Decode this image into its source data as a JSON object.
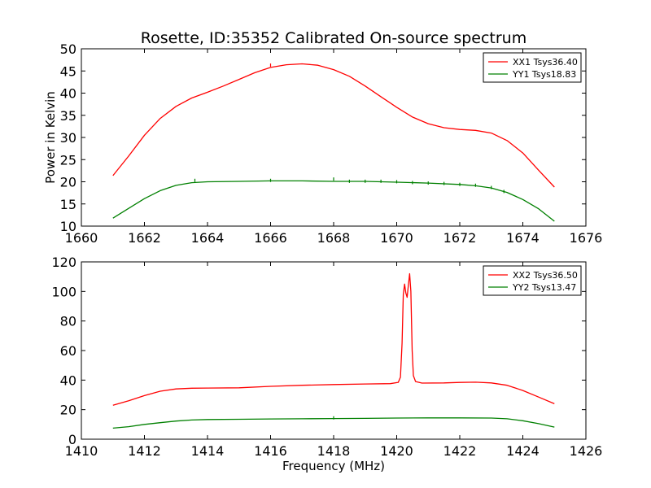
{
  "figure": {
    "title": "Rosette, ID:35352 Calibrated On-source spectrum"
  },
  "chart_data": [
    {
      "type": "line",
      "title": "Rosette, ID:35352 Calibrated On-source spectrum",
      "xlabel": "",
      "ylabel": "Power in Kelvin",
      "xlim": [
        1660,
        1676
      ],
      "ylim": [
        10,
        50
      ],
      "xticks": [
        "1660",
        "1662",
        "1664",
        "1666",
        "1668",
        "1670",
        "1672",
        "1674",
        "1676"
      ],
      "yticks": [
        "10",
        "15",
        "20",
        "25",
        "30",
        "35",
        "40",
        "45",
        "50"
      ],
      "legend_position": "top-right",
      "series": [
        {
          "name": "XX1 Tsys36.40",
          "color": "#ff0000",
          "points": [
            [
              1661.0,
              21.4
            ],
            [
              1661.5,
              25.8
            ],
            [
              1662.0,
              30.5
            ],
            [
              1662.5,
              34.3
            ],
            [
              1663.0,
              37.0
            ],
            [
              1663.5,
              38.9
            ],
            [
              1664.0,
              40.2
            ],
            [
              1664.5,
              41.6
            ],
            [
              1665.0,
              43.1
            ],
            [
              1665.5,
              44.6
            ],
            [
              1666.0,
              45.8
            ],
            [
              1666.5,
              46.4
            ],
            [
              1667.0,
              46.6
            ],
            [
              1667.5,
              46.3
            ],
            [
              1668.0,
              45.3
            ],
            [
              1668.5,
              43.8
            ],
            [
              1669.0,
              41.6
            ],
            [
              1669.5,
              39.2
            ],
            [
              1670.0,
              36.8
            ],
            [
              1670.5,
              34.6
            ],
            [
              1671.0,
              33.1
            ],
            [
              1671.5,
              32.2
            ],
            [
              1672.0,
              31.8
            ],
            [
              1672.5,
              31.6
            ],
            [
              1673.0,
              31.0
            ],
            [
              1673.5,
              29.3
            ],
            [
              1674.0,
              26.5
            ],
            [
              1674.5,
              22.6
            ],
            [
              1675.0,
              18.8
            ]
          ],
          "spikes": [
            [
              1666.0,
              46.5
            ]
          ]
        },
        {
          "name": "YY1 Tsys18.83",
          "color": "#008000",
          "points": [
            [
              1661.0,
              11.8
            ],
            [
              1661.5,
              14.0
            ],
            [
              1662.0,
              16.2
            ],
            [
              1662.5,
              18.0
            ],
            [
              1663.0,
              19.2
            ],
            [
              1663.5,
              19.8
            ],
            [
              1664.0,
              20.0
            ],
            [
              1665.0,
              20.1
            ],
            [
              1666.0,
              20.2
            ],
            [
              1667.0,
              20.2
            ],
            [
              1668.0,
              20.1
            ],
            [
              1669.0,
              20.1
            ],
            [
              1670.0,
              19.9
            ],
            [
              1671.0,
              19.7
            ],
            [
              1672.0,
              19.4
            ],
            [
              1672.5,
              19.1
            ],
            [
              1673.0,
              18.6
            ],
            [
              1673.5,
              17.6
            ],
            [
              1674.0,
              16.0
            ],
            [
              1674.5,
              13.9
            ],
            [
              1675.0,
              11.1
            ]
          ],
          "spikes": [
            [
              1663.6,
              20.5
            ],
            [
              1666.0,
              20.5
            ],
            [
              1668.0,
              20.8
            ],
            [
              1668.5,
              20.3
            ],
            [
              1669.0,
              20.3
            ],
            [
              1669.5,
              20.3
            ],
            [
              1670.0,
              20.2
            ],
            [
              1670.5,
              20.0
            ],
            [
              1671.0,
              19.9
            ],
            [
              1671.5,
              19.8
            ],
            [
              1672.0,
              19.6
            ],
            [
              1672.5,
              19.4
            ],
            [
              1673.0,
              18.9
            ],
            [
              1673.4,
              18.0
            ]
          ]
        }
      ]
    },
    {
      "type": "line",
      "title": "",
      "xlabel": "Frequency (MHz)",
      "ylabel": "",
      "xlim": [
        1410,
        1426
      ],
      "ylim": [
        0,
        120
      ],
      "xticks": [
        "1410",
        "1412",
        "1414",
        "1416",
        "1418",
        "1420",
        "1422",
        "1424",
        "1426"
      ],
      "yticks": [
        "0",
        "20",
        "40",
        "60",
        "80",
        "100",
        "120"
      ],
      "legend_position": "top-right",
      "series": [
        {
          "name": "XX2 Tsys36.50",
          "color": "#ff0000",
          "points": [
            [
              1411.0,
              23.0
            ],
            [
              1411.5,
              26.0
            ],
            [
              1412.0,
              29.5
            ],
            [
              1412.5,
              32.5
            ],
            [
              1413.0,
              34.0
            ],
            [
              1413.5,
              34.5
            ],
            [
              1414.0,
              34.6
            ],
            [
              1415.0,
              34.8
            ],
            [
              1416.0,
              35.8
            ],
            [
              1417.0,
              36.5
            ],
            [
              1418.0,
              37.0
            ],
            [
              1419.0,
              37.4
            ],
            [
              1419.8,
              37.6
            ],
            [
              1420.05,
              38.5
            ],
            [
              1420.12,
              42.0
            ],
            [
              1420.17,
              65.0
            ],
            [
              1420.21,
              98.0
            ],
            [
              1420.25,
              105.0
            ],
            [
              1420.29,
              99.0
            ],
            [
              1420.33,
              96.0
            ],
            [
              1420.37,
              104.0
            ],
            [
              1420.41,
              112.0
            ],
            [
              1420.45,
              100.0
            ],
            [
              1420.49,
              60.0
            ],
            [
              1420.53,
              43.0
            ],
            [
              1420.6,
              39.0
            ],
            [
              1420.8,
              38.0
            ],
            [
              1421.5,
              38.1
            ],
            [
              1422.0,
              38.4
            ],
            [
              1422.5,
              38.6
            ],
            [
              1423.0,
              38.1
            ],
            [
              1423.5,
              36.5
            ],
            [
              1424.0,
              33.0
            ],
            [
              1424.5,
              28.5
            ],
            [
              1425.0,
              24.0
            ]
          ],
          "spikes": []
        },
        {
          "name": "YY2 Tsys13.47",
          "color": "#008000",
          "points": [
            [
              1411.0,
              7.5
            ],
            [
              1411.5,
              8.5
            ],
            [
              1412.0,
              10.0
            ],
            [
              1412.5,
              11.2
            ],
            [
              1413.0,
              12.3
            ],
            [
              1413.5,
              13.0
            ],
            [
              1414.0,
              13.3
            ],
            [
              1415.0,
              13.5
            ],
            [
              1416.0,
              13.7
            ],
            [
              1417.0,
              13.8
            ],
            [
              1418.0,
              14.0
            ],
            [
              1419.0,
              14.1
            ],
            [
              1420.0,
              14.3
            ],
            [
              1421.0,
              14.4
            ],
            [
              1422.0,
              14.4
            ],
            [
              1423.0,
              14.3
            ],
            [
              1423.5,
              13.8
            ],
            [
              1424.0,
              12.5
            ],
            [
              1424.5,
              10.5
            ],
            [
              1425.0,
              8.2
            ]
          ],
          "spikes": [
            [
              1418.0,
              15.0
            ]
          ]
        }
      ]
    }
  ]
}
